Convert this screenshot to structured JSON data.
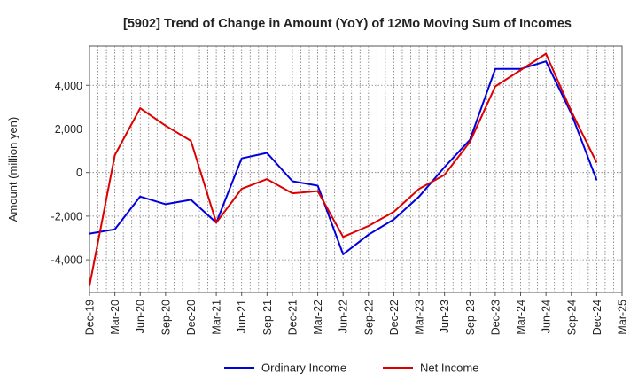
{
  "chart_data": {
    "type": "line",
    "title": "[5902]  Trend of Change in Amount (YoY) of 12Mo Moving Sum of Incomes",
    "ylabel": "Amount (million yen)",
    "xlabel": "",
    "ylim": [
      -5500,
      5800
    ],
    "yticks": [
      -4000,
      -2000,
      0,
      2000,
      4000
    ],
    "ytick_labels": [
      "-4,000",
      "-2,000",
      "0",
      "2,000",
      "4,000"
    ],
    "categories": [
      "Dec-19",
      "Mar-20",
      "Jun-20",
      "Sep-20",
      "Dec-20",
      "Mar-21",
      "Jun-21",
      "Sep-21",
      "Dec-21",
      "Mar-22",
      "Jun-22",
      "Sep-22",
      "Dec-22",
      "Mar-23",
      "Jun-23",
      "Sep-23",
      "Dec-23",
      "Mar-24",
      "Jun-24",
      "Sep-24",
      "Dec-24",
      "Mar-25"
    ],
    "grid": true,
    "legend_position": "bottom",
    "series": [
      {
        "name": "Ordinary Income",
        "color": "#0000dd",
        "values": [
          -2800,
          -2600,
          -1100,
          -1450,
          -1250,
          -2300,
          650,
          900,
          -400,
          -600,
          -3750,
          -2850,
          -2150,
          -1100,
          250,
          1500,
          4750,
          4750,
          5100,
          2700,
          -350,
          null
        ]
      },
      {
        "name": "Net Income",
        "color": "#dd0000",
        "values": [
          -5200,
          800,
          2950,
          2150,
          1450,
          -2300,
          -750,
          -300,
          -950,
          -850,
          -2950,
          -2450,
          -1800,
          -750,
          -100,
          1400,
          3950,
          4700,
          5450,
          2800,
          450,
          null
        ]
      }
    ]
  }
}
